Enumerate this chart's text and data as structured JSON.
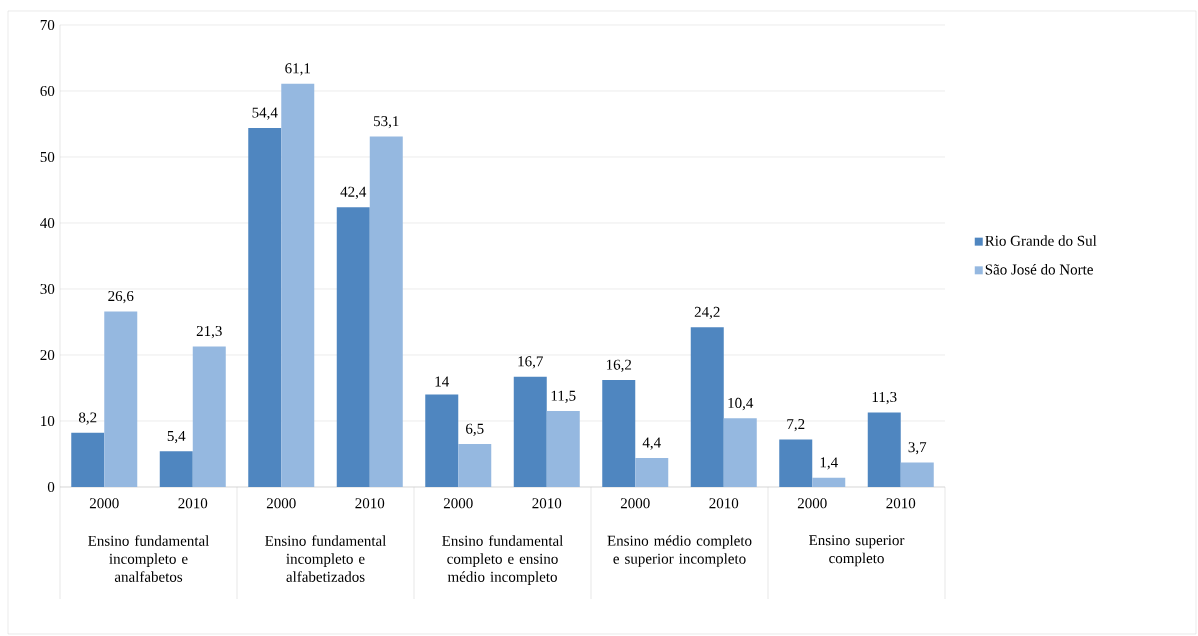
{
  "chart_data": {
    "type": "bar",
    "categories": [
      "2000",
      "2010",
      "2000",
      "2010",
      "2000",
      "2010",
      "2000",
      "2010",
      "2000",
      "2010"
    ],
    "series": [
      {
        "name": "Rio Grande do Sul",
        "color": "#4f86c0",
        "values": [
          8.2,
          5.4,
          54.4,
          42.4,
          14,
          16.7,
          16.2,
          24.2,
          7.2,
          11.3
        ],
        "value_labels": [
          "8,2",
          "5,4",
          "54,4",
          "42,4",
          "14",
          "16,7",
          "16,2",
          "24,2",
          "7,2",
          "11,3"
        ]
      },
      {
        "name": "São José do Norte",
        "color": "#95b8e0",
        "values": [
          26.6,
          21.3,
          61.1,
          53.1,
          6.5,
          11.5,
          4.4,
          10.4,
          1.4,
          3.7
        ],
        "value_labels": [
          "26,6",
          "21,3",
          "61,1",
          "53,1",
          "6,5",
          "11,5",
          "4,4",
          "10,4",
          "1,4",
          "3,7"
        ]
      }
    ],
    "annotations": [
      "Ensino fundamental incompleto e analfabetos",
      "Ensino fundamental incompleto e alfabetizados",
      "Ensino fundamental completo e ensino médio incompleto",
      "Ensino médio completo e superior incompleto",
      "Ensino superior completo"
    ],
    "ylim": [
      0,
      70
    ],
    "yticks": [
      0,
      10,
      20,
      30,
      40,
      50,
      60,
      70
    ],
    "grid": "y",
    "legend": "right"
  }
}
